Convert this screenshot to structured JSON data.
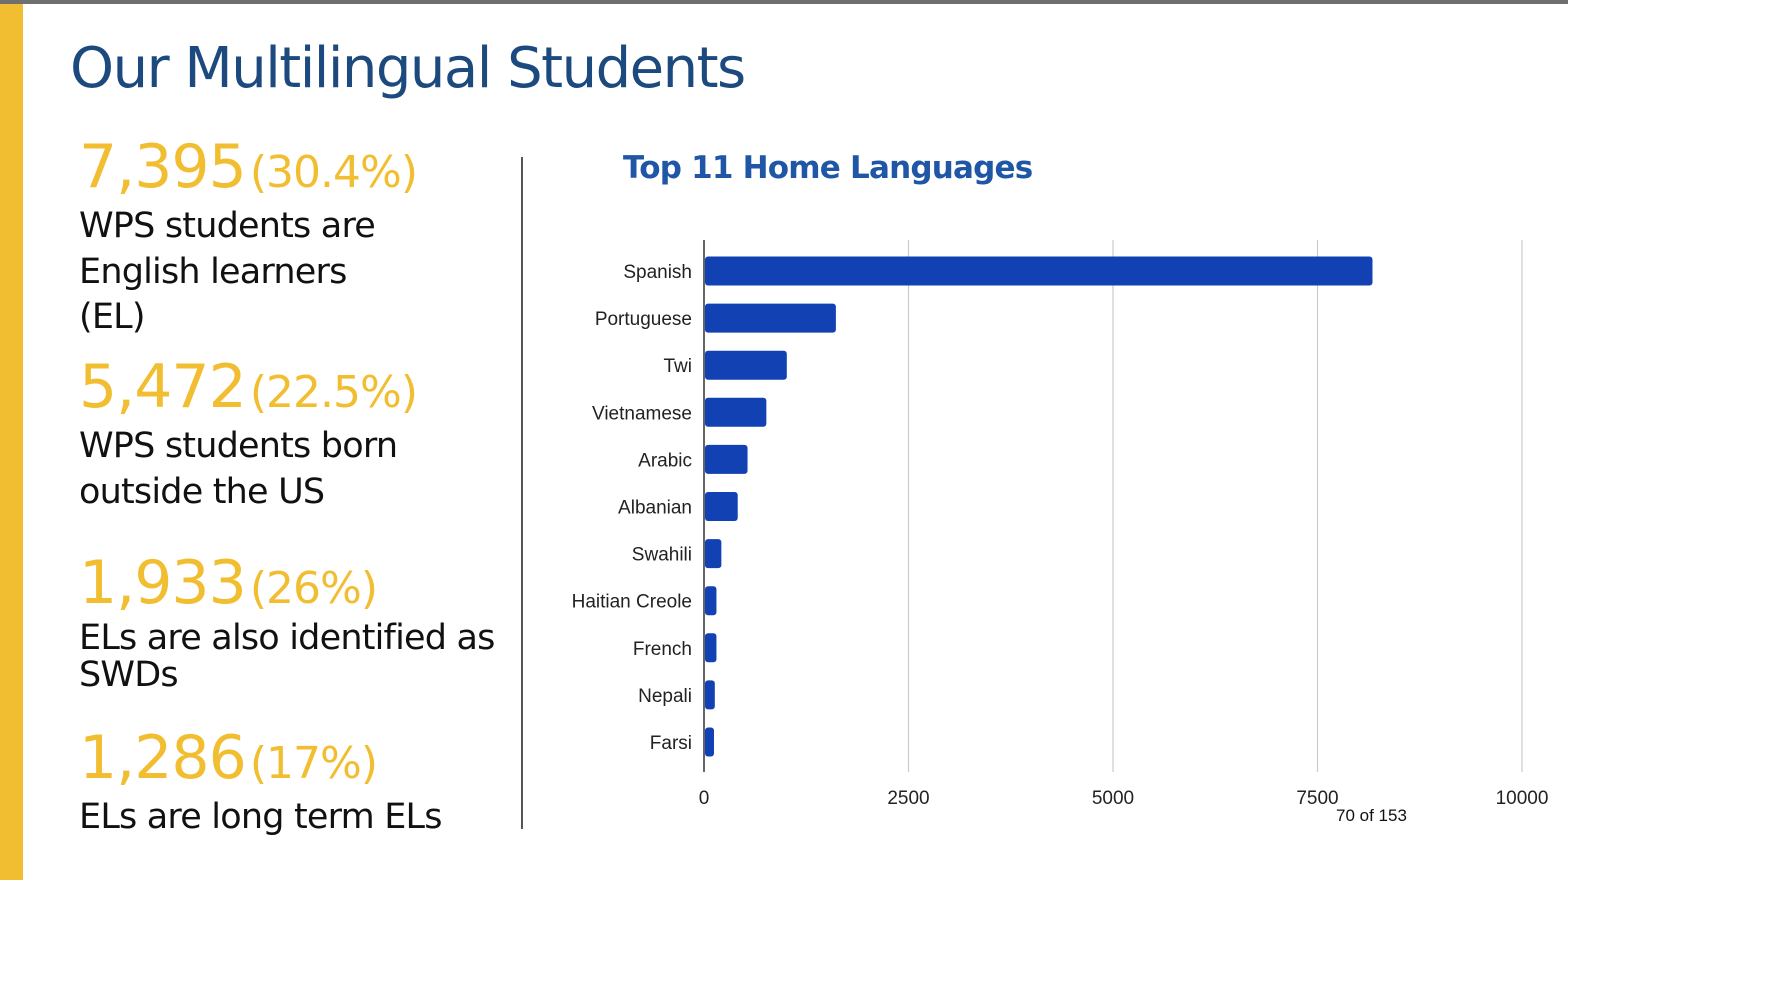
{
  "slide": {
    "title": "Our Multilingual Students",
    "page_number": "70 of 153"
  },
  "stats": [
    {
      "number": "7,395",
      "percent": "(30.4%)",
      "description": "WPS students are English learners (EL)"
    },
    {
      "number": "5,472",
      "percent": "(22.5%)",
      "description": "WPS students born outside the US"
    },
    {
      "number": "1,933",
      "percent": "(26%)",
      "description": "ELs are also identified as SWDs"
    },
    {
      "number": "1,286",
      "percent": "(17%)",
      "description": "ELs are long term ELs"
    }
  ],
  "colors": {
    "accent": "#f2be31",
    "title": "#1d4a7e",
    "bar": "#1241b4",
    "chart_title": "#1f56a6"
  },
  "chart_data": {
    "type": "bar",
    "orientation": "horizontal",
    "title": "Top 11 Home Languages",
    "categories": [
      "Spanish",
      "Portuguese",
      "Twi",
      "Vietnamese",
      "Arabic",
      "Albanian",
      "Swahili",
      "Haitian Creole",
      "French",
      "Nepali",
      "Farsi"
    ],
    "values": [
      8160,
      1600,
      1000,
      750,
      520,
      400,
      200,
      140,
      140,
      120,
      110
    ],
    "xlim": [
      0,
      10000
    ],
    "xticks": [
      0,
      2500,
      5000,
      7500,
      10000
    ],
    "grid": true,
    "xlabel": "",
    "ylabel": ""
  }
}
